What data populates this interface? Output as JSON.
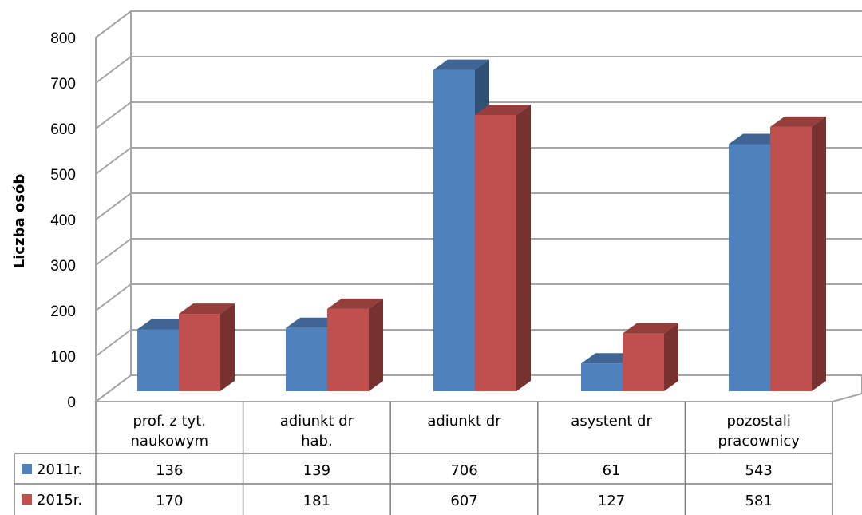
{
  "chart_data": {
    "type": "bar",
    "style": "3d-clustered-column-with-data-table",
    "ylabel": "Liczba osób",
    "ylim": [
      0,
      800
    ],
    "yticks": [
      "0",
      "100",
      "200",
      "300",
      "400",
      "500",
      "600",
      "700",
      "800"
    ],
    "grid": true,
    "categories": [
      [
        "prof. z tyt.",
        "naukowym"
      ],
      [
        "adiunkt dr",
        "hab."
      ],
      [
        "adiunkt dr"
      ],
      [
        "asystent dr"
      ],
      [
        "pozostali",
        "pracownicy"
      ]
    ],
    "series": [
      {
        "name": "2011r.",
        "color": "#4F81BD",
        "values": [
          136,
          139,
          706,
          61,
          543
        ]
      },
      {
        "name": "2015r.",
        "color": "#C0504D",
        "values": [
          170,
          181,
          607,
          127,
          581
        ]
      }
    ]
  }
}
